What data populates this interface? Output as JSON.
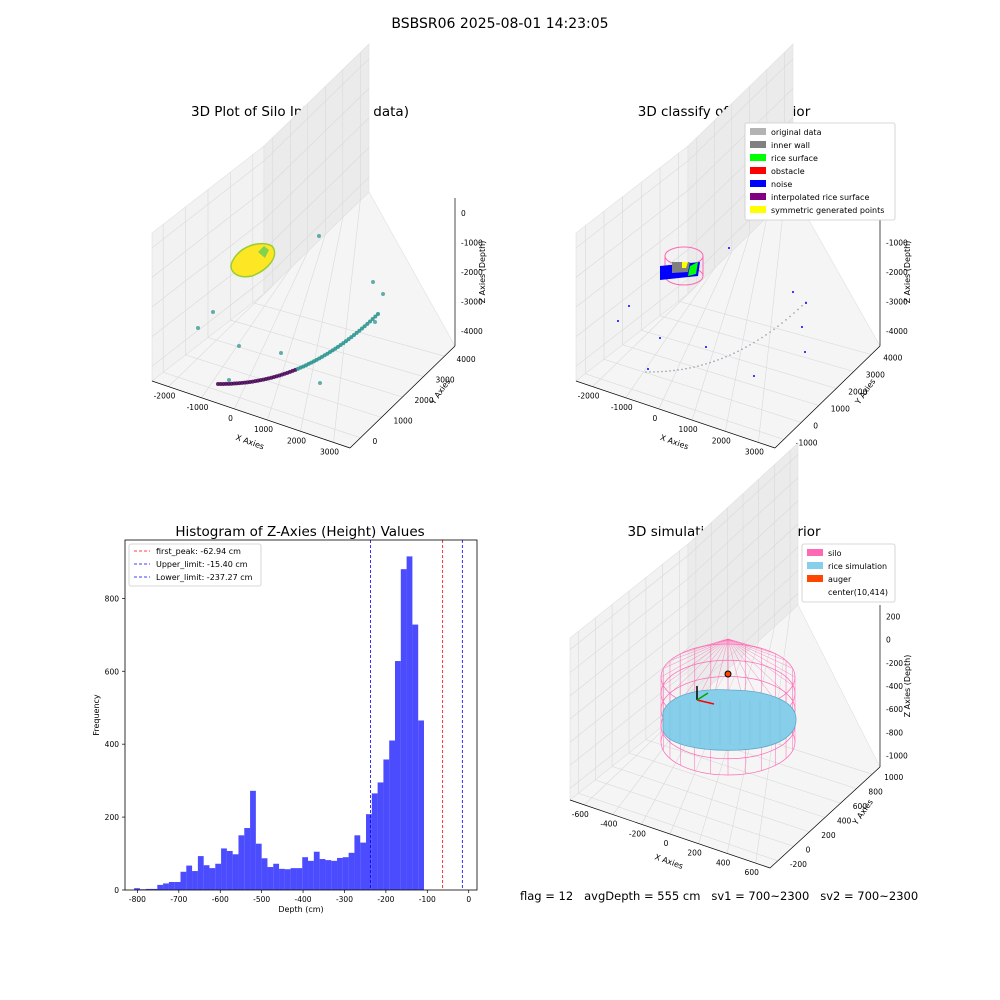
{
  "suptitle": "BSBSR06 2025-08-01 14:23:05",
  "chart_data": [
    {
      "type": "scatter",
      "title": "3D Plot of Silo Interior(row data)",
      "xlabel": "X Axies",
      "ylabel": "Y Axies",
      "zlabel": "Z Axies (Depth)",
      "x_ticks": [
        "-2000",
        "-1000",
        "0",
        "1000",
        "2000",
        "3000"
      ],
      "y_ticks": [
        "0",
        "1000",
        "2000",
        "3000",
        "4000"
      ],
      "z_ticks": [
        "0",
        "-1000",
        "-2000",
        "-3000",
        "-4000"
      ],
      "colors": {
        "low": "#440154",
        "mid": "#21908c",
        "high": "#fde725"
      }
    },
    {
      "type": "scatter",
      "title": "3D classify of Silo Interior",
      "xlabel": "X Axies",
      "ylabel": "Y Axies",
      "zlabel": "Z Axies (Depth)",
      "x_ticks": [
        "-2000",
        "-1000",
        "0",
        "1000",
        "2000",
        "3000"
      ],
      "y_ticks": [
        "-1000",
        "0",
        "1000",
        "2000",
        "3000",
        "4000"
      ],
      "z_ticks": [
        "0",
        "-1000",
        "-2000",
        "-3000",
        "-4000"
      ],
      "legend": [
        {
          "label": "original data",
          "color": "#b3b3b3"
        },
        {
          "label": "inner wall",
          "color": "#808080"
        },
        {
          "label": "rice surface",
          "color": "#00ff00"
        },
        {
          "label": "obstacle",
          "color": "#ff0000"
        },
        {
          "label": "noise",
          "color": "#0000ff"
        },
        {
          "label": "interpolated rice surface",
          "color": "#800080"
        },
        {
          "label": "symmetric generated points",
          "color": "#ffff00"
        }
      ],
      "legend_position": "upper-right"
    },
    {
      "type": "bar",
      "title": "Histogram of Z-Axies (Height) Values",
      "xlabel": "Depth (cm)",
      "ylabel": "Frequency",
      "xlim": [
        -830,
        20
      ],
      "ylim": [
        0,
        960
      ],
      "x_ticks": [
        -800,
        -700,
        -600,
        -500,
        -400,
        -300,
        -200,
        -100,
        0
      ],
      "y_ticks": [
        0,
        200,
        400,
        600,
        800
      ],
      "bin_width": 14,
      "bins_start": [
        -808,
        -794,
        -780,
        -766,
        -752,
        -738,
        -724,
        -710,
        -696,
        -682,
        -668,
        -654,
        -640,
        -626,
        -612,
        -598,
        -584,
        -570,
        -556,
        -542,
        -528,
        -514,
        -500,
        -486,
        -472,
        -458,
        -444,
        -430,
        -416,
        -402,
        -388,
        -374,
        -360,
        -346,
        -332,
        -318,
        -304,
        -290,
        -276,
        -262,
        -248,
        -234,
        -220,
        -206,
        -192,
        -178,
        -164,
        -150,
        -136,
        -122,
        -108,
        -94,
        -80,
        -66,
        -52,
        -38,
        -24
      ],
      "values": [
        5,
        2,
        3,
        3,
        14,
        18,
        22,
        22,
        50,
        67,
        52,
        93,
        68,
        60,
        72,
        114,
        107,
        98,
        150,
        170,
        272,
        127,
        87,
        63,
        72,
        58,
        57,
        60,
        60,
        90,
        80,
        105,
        85,
        82,
        80,
        88,
        90,
        102,
        150,
        130,
        208,
        265,
        295,
        358,
        410,
        628,
        880,
        915,
        728,
        465,
        0,
        0,
        0,
        0,
        0,
        0,
        0
      ],
      "bar_color": "#0000ff",
      "vlines": [
        {
          "x": -62.94,
          "color": "#ff0000",
          "label": "first_peak: -62.94 cm"
        },
        {
          "x": -15.4,
          "color": "#0000ff",
          "label": "Upper_limit: -15.40 cm"
        },
        {
          "x": -237.27,
          "color": "#0000ff",
          "label": "Lower_limit: -237.27 cm"
        }
      ],
      "legend_position": "upper-left"
    },
    {
      "type": "scatter",
      "title": "3D simulation of Silo Interior",
      "xlabel": "X Axies",
      "ylabel": "Y Axies",
      "zlabel": "Z Axies (Depth)",
      "x_ticks": [
        "-600",
        "-400",
        "-200",
        "0",
        "200",
        "400",
        "600"
      ],
      "y_ticks": [
        "-200",
        "0",
        "200",
        "400",
        "600",
        "800",
        "1000"
      ],
      "z_ticks": [
        "200",
        "0",
        "-200",
        "-400",
        "-600",
        "-800",
        "-1000"
      ],
      "legend": [
        {
          "label": "silo",
          "color": "#ff69b4"
        },
        {
          "label": "rice simulation",
          "color": "#87ceeb"
        },
        {
          "label": "auger",
          "color": "#ff4500"
        },
        {
          "label": "center(10,414)",
          "color": "#ffffff"
        }
      ],
      "legend_position": "upper-right"
    }
  ],
  "footer": "flag = 12   avgDepth = 555 cm   sv1 = 700~2300   sv2 = 700~2300"
}
